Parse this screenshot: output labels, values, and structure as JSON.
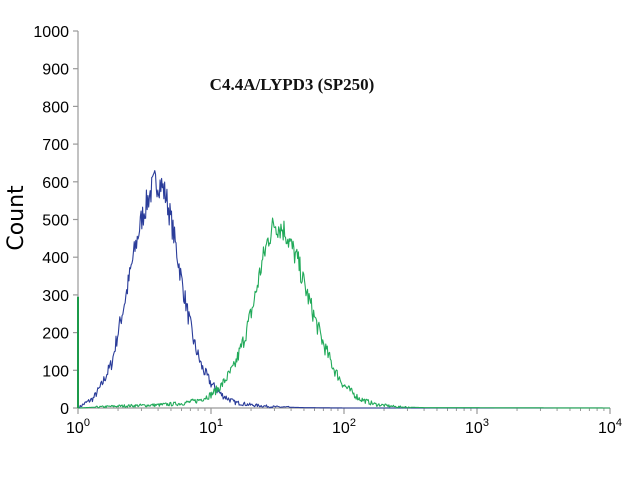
{
  "chart_data": {
    "type": "line",
    "title": "C4.4A/LYPD3 (SP250)",
    "xlabel": "",
    "ylabel": "Count",
    "xscale": "log",
    "xlim": [
      1,
      10000
    ],
    "ylim": [
      0,
      1000
    ],
    "grid": false,
    "legend": "none",
    "yticks": [
      "0",
      "100",
      "200",
      "300",
      "400",
      "500",
      "600",
      "700",
      "800",
      "900",
      "1000"
    ],
    "xticks": [
      {
        "base": "10",
        "exp": "0"
      },
      {
        "base": "10",
        "exp": "1"
      },
      {
        "base": "10",
        "exp": "2"
      },
      {
        "base": "10",
        "exp": "3"
      },
      {
        "base": "10",
        "exp": "4"
      }
    ],
    "series": [
      {
        "color": "#2b3d9a",
        "x": [
          1.0,
          1.1,
          1.3,
          1.5,
          1.8,
          2.0,
          2.3,
          2.6,
          3.0,
          3.4,
          3.8,
          4.2,
          4.6,
          5.0,
          5.5,
          6.0,
          6.7,
          7.5,
          8.5,
          10,
          12,
          15,
          20,
          30,
          50,
          100,
          10000
        ],
        "values": [
          0,
          10,
          25,
          60,
          120,
          200,
          300,
          400,
          500,
          560,
          600,
          595,
          560,
          500,
          420,
          340,
          250,
          170,
          110,
          65,
          35,
          15,
          8,
          3,
          1,
          0,
          0
        ]
      },
      {
        "color": "#22aa5a",
        "x": [
          1.0,
          2,
          4,
          6,
          8,
          10,
          12,
          15,
          18,
          21,
          24,
          27,
          30,
          33,
          36,
          40,
          45,
          50,
          60,
          70,
          85,
          100,
          130,
          170,
          250,
          400,
          10000
        ],
        "values": [
          0,
          5,
          8,
          12,
          20,
          35,
          60,
          110,
          190,
          280,
          380,
          450,
          490,
          480,
          470,
          430,
          390,
          330,
          240,
          170,
          100,
          60,
          25,
          10,
          3,
          1,
          0
        ]
      },
      {
        "color": "#1c9a4a",
        "x": [
          1.0,
          1.0
        ],
        "values": [
          0,
          295
        ]
      }
    ]
  }
}
